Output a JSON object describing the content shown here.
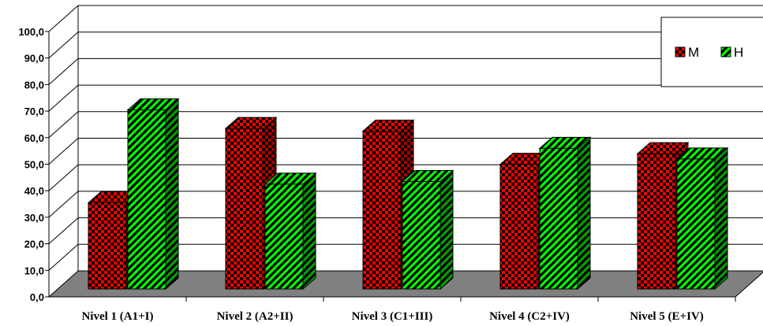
{
  "chart_data": {
    "type": "bar",
    "style": "3d-clustered-column",
    "categories": [
      "Nivel 1 (A1+I)",
      "Nivel 2 (A2+II)",
      "Nivel 3 (C1+III)",
      "Nivel 4 (C2+IV)",
      "Nivel 5 (E+IV)"
    ],
    "series": [
      {
        "name": "M",
        "values": [
          32.5,
          60.5,
          59.5,
          47.0,
          51.0
        ],
        "color": "#ff0000",
        "pattern": "checkerboard"
      },
      {
        "name": "H",
        "values": [
          67.5,
          39.5,
          40.5,
          53.0,
          49.0
        ],
        "color": "#00ff00",
        "pattern": "diagonal-stripes"
      }
    ],
    "y_ticks": [
      "0,0",
      "10,0",
      "20,0",
      "30,0",
      "40,0",
      "50,0",
      "60,0",
      "70,0",
      "80,0",
      "90,0",
      "100,0"
    ],
    "ylim": [
      0,
      100
    ],
    "grid": true,
    "legend_position": "top-right",
    "floor_color": "#808080"
  }
}
